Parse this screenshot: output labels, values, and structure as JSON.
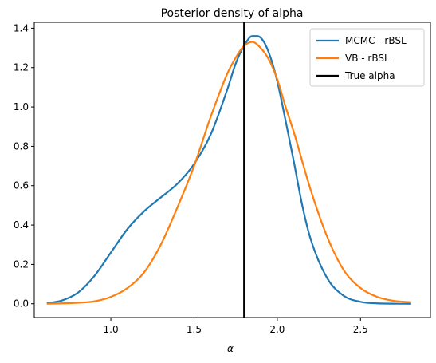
{
  "chart_data": {
    "type": "line",
    "title": "Posterior density of alpha",
    "xlabel": "α",
    "ylabel": "",
    "xlim": [
      0.54,
      2.92
    ],
    "ylim": [
      -0.07,
      1.43
    ],
    "xticks": [
      1.0,
      1.5,
      2.0,
      2.5
    ],
    "xtick_labels": [
      "1.0",
      "1.5",
      "2.0",
      "2.5"
    ],
    "yticks": [
      0.0,
      0.2,
      0.4,
      0.6,
      0.8,
      1.0,
      1.2,
      1.4
    ],
    "ytick_labels": [
      "0.0",
      "0.2",
      "0.4",
      "0.6",
      "0.8",
      "1.0",
      "1.2",
      "1.4"
    ],
    "grid": false,
    "legend_placement": "top-right",
    "series": [
      {
        "name": "MCMC - rBSL",
        "color": "#1f77b4",
        "x": [
          0.62,
          0.7,
          0.8,
          0.9,
          1.0,
          1.1,
          1.2,
          1.3,
          1.4,
          1.5,
          1.6,
          1.7,
          1.75,
          1.8,
          1.85,
          1.88,
          1.92,
          1.96,
          2.0,
          2.05,
          2.1,
          2.15,
          2.2,
          2.3,
          2.4,
          2.5,
          2.6,
          2.8
        ],
        "y": [
          0.004,
          0.015,
          0.055,
          0.14,
          0.26,
          0.38,
          0.47,
          0.54,
          0.61,
          0.71,
          0.86,
          1.09,
          1.22,
          1.31,
          1.36,
          1.36,
          1.33,
          1.25,
          1.13,
          0.93,
          0.72,
          0.5,
          0.33,
          0.13,
          0.04,
          0.01,
          0.002,
          0.0
        ]
      },
      {
        "name": "VB - rBSL",
        "color": "#ff7f0e",
        "x": [
          0.62,
          0.8,
          0.9,
          1.0,
          1.1,
          1.2,
          1.3,
          1.4,
          1.5,
          1.6,
          1.7,
          1.75,
          1.8,
          1.85,
          1.9,
          1.95,
          2.0,
          2.05,
          2.1,
          2.2,
          2.3,
          2.4,
          2.5,
          2.6,
          2.7,
          2.8
        ],
        "y": [
          0.0,
          0.005,
          0.012,
          0.035,
          0.08,
          0.16,
          0.3,
          0.49,
          0.7,
          0.95,
          1.17,
          1.25,
          1.31,
          1.33,
          1.3,
          1.24,
          1.14,
          1.0,
          0.87,
          0.58,
          0.34,
          0.17,
          0.08,
          0.035,
          0.015,
          0.008
        ]
      },
      {
        "name": "True alpha",
        "color": "#000000",
        "vline": 1.8
      }
    ]
  }
}
